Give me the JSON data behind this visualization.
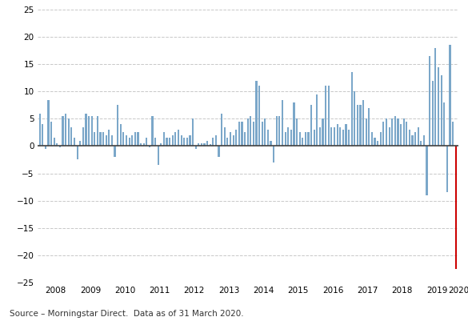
{
  "title": "",
  "source_text": "Source – Morningstar Direct.  Data as of 31 March 2020.",
  "ylabel": "",
  "xlabel": "",
  "ylim": [
    -25,
    25
  ],
  "yticks": [
    -25,
    -20,
    -15,
    -10,
    -5,
    0,
    5,
    10,
    15,
    20,
    25
  ],
  "bar_color_normal": "#7BA7C9",
  "bar_color_last": "#CC0000",
  "background_color": "#ffffff",
  "values": [
    6.0,
    4.0,
    -0.5,
    8.5,
    4.5,
    1.5,
    0.5,
    -0.2,
    5.5,
    6.0,
    5.0,
    3.5,
    1.5,
    -2.5,
    1.0,
    3.5,
    6.0,
    5.5,
    5.5,
    2.5,
    5.5,
    2.5,
    2.5,
    2.0,
    3.0,
    2.0,
    -2.0,
    7.5,
    4.0,
    2.5,
    2.0,
    1.5,
    2.0,
    2.5,
    2.5,
    0.5,
    0.5,
    1.5,
    -0.2,
    5.5,
    1.5,
    -3.5,
    0.5,
    2.5,
    1.5,
    1.5,
    2.0,
    2.5,
    3.0,
    2.0,
    1.5,
    1.5,
    2.0,
    5.0,
    -0.5,
    0.5,
    0.5,
    0.5,
    1.0,
    0.3,
    1.5,
    2.0,
    -2.0,
    6.0,
    3.5,
    1.5,
    2.5,
    2.0,
    3.0,
    4.5,
    4.5,
    2.5,
    5.0,
    5.5,
    4.5,
    12.0,
    11.0,
    4.5,
    5.0,
    3.0,
    1.0,
    -3.0,
    5.5,
    5.5,
    8.5,
    2.5,
    3.5,
    3.0,
    8.0,
    5.0,
    2.5,
    1.5,
    2.5,
    2.5,
    7.5,
    3.0,
    9.5,
    3.5,
    5.0,
    11.0,
    11.0,
    3.5,
    3.5,
    4.0,
    3.5,
    3.0,
    4.0,
    3.0,
    13.5,
    10.0,
    7.5,
    7.5,
    8.5,
    5.0,
    7.0,
    2.5,
    1.5,
    1.0,
    2.5,
    4.5,
    5.0,
    3.5,
    5.0,
    5.5,
    5.0,
    4.0,
    5.0,
    4.5,
    3.0,
    2.0,
    2.5,
    3.5,
    1.0,
    2.0,
    -9.0,
    16.5,
    12.0,
    18.0,
    14.5,
    13.0,
    8.0,
    -8.5,
    18.5,
    4.5,
    -22.5
  ],
  "x_labels": [
    "2008",
    "2009",
    "2010",
    "2011",
    "2012",
    "2013",
    "2014",
    "2015",
    "2016",
    "2017",
    "2018",
    "2019",
    "2020"
  ],
  "months_per_year": 12,
  "num_years": 12,
  "last_year_months": 3
}
